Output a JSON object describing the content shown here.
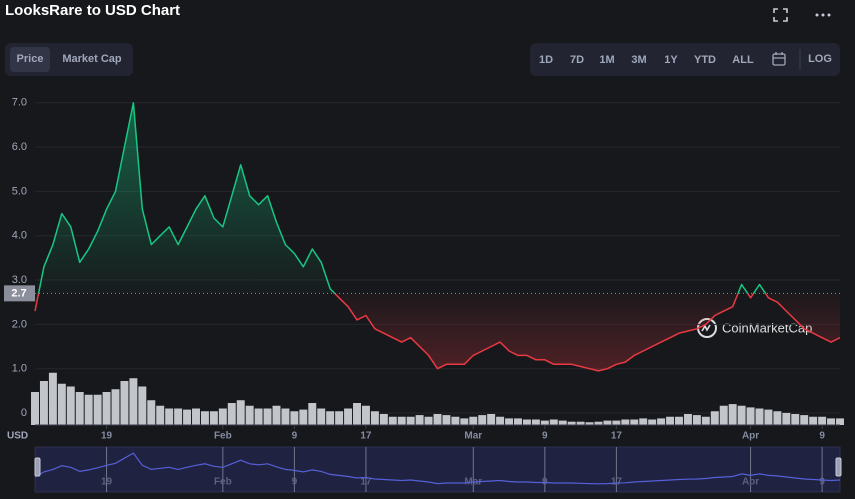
{
  "header": {
    "title": "LooksRare to USD Chart",
    "tabs": [
      "Price",
      "Market Cap"
    ],
    "ranges": [
      "1D",
      "7D",
      "1M",
      "3M",
      "1Y",
      "YTD",
      "ALL"
    ],
    "log": "LOG"
  },
  "chart_data": {
    "type": "line",
    "currency_label": "USD",
    "watermark": "CoinMarketCap",
    "x": [
      11,
      12,
      13,
      14,
      15,
      16,
      17,
      18,
      19,
      20,
      21,
      22,
      23,
      24,
      25,
      26,
      27,
      28,
      29,
      30,
      31,
      32,
      33,
      34,
      35,
      36,
      37,
      38,
      39,
      40,
      41,
      42,
      43,
      44,
      45,
      46,
      47,
      48,
      49,
      50,
      51,
      52,
      53,
      54,
      55,
      56,
      57,
      58,
      59,
      60,
      61,
      62,
      63,
      64,
      65,
      66,
      67,
      68,
      69,
      70,
      71,
      72,
      73,
      74,
      75,
      76,
      77,
      78,
      79,
      80,
      81,
      82,
      83,
      84,
      85,
      86,
      87,
      88,
      89,
      90,
      91,
      92,
      93,
      94,
      95,
      96,
      97,
      98,
      99,
      100,
      101
    ],
    "values": [
      2.3,
      3.3,
      3.8,
      4.5,
      4.2,
      3.4,
      3.7,
      4.1,
      4.6,
      5.0,
      6.0,
      7.0,
      4.6,
      3.8,
      4.0,
      4.2,
      3.8,
      4.2,
      4.6,
      4.9,
      4.4,
      4.2,
      4.9,
      5.6,
      4.9,
      4.7,
      4.9,
      4.3,
      3.8,
      3.6,
      3.3,
      3.7,
      3.4,
      2.8,
      2.6,
      2.4,
      2.1,
      2.2,
      1.9,
      1.8,
      1.7,
      1.6,
      1.7,
      1.5,
      1.3,
      1.0,
      1.1,
      1.1,
      1.1,
      1.3,
      1.4,
      1.5,
      1.6,
      1.4,
      1.3,
      1.3,
      1.2,
      1.2,
      1.1,
      1.1,
      1.1,
      1.05,
      1.0,
      0.95,
      1.0,
      1.1,
      1.15,
      1.3,
      1.4,
      1.5,
      1.6,
      1.7,
      1.8,
      1.85,
      1.9,
      2.0,
      2.2,
      2.3,
      2.4,
      2.9,
      2.6,
      2.9,
      2.6,
      2.5,
      2.3,
      2.1,
      1.9,
      1.8,
      1.7,
      1.6,
      1.7
    ],
    "volume": [
      60,
      80,
      95,
      75,
      70,
      60,
      55,
      55,
      60,
      65,
      80,
      85,
      70,
      45,
      35,
      30,
      30,
      28,
      30,
      25,
      25,
      30,
      40,
      45,
      35,
      30,
      30,
      35,
      30,
      25,
      28,
      40,
      30,
      25,
      25,
      30,
      40,
      35,
      25,
      20,
      15,
      15,
      15,
      18,
      15,
      20,
      18,
      15,
      12,
      15,
      18,
      20,
      15,
      12,
      12,
      10,
      10,
      8,
      10,
      8,
      6,
      6,
      5,
      6,
      8,
      8,
      10,
      10,
      12,
      10,
      12,
      15,
      15,
      20,
      18,
      15,
      25,
      35,
      38,
      35,
      32,
      30,
      28,
      25,
      22,
      20,
      18,
      15,
      15,
      12,
      12
    ],
    "volume_lim": [
      0,
      100
    ],
    "baseline": 2.7,
    "up_color": "#16c784",
    "down_color": "#ea3943",
    "volume_color": "#d5d8de",
    "navigator_color": "#5560d8",
    "xlim": [
      11,
      101
    ],
    "xticks": [
      19,
      {
        "value": 32,
        "label": "Feb"
      },
      {
        "value": 40,
        "label": "9"
      },
      {
        "value": 48,
        "label": "17"
      },
      {
        "value": 60,
        "label": "Mar"
      },
      {
        "value": 68,
        "label": "9"
      },
      {
        "value": 76,
        "label": "17"
      },
      {
        "value": 91,
        "label": "Apr"
      },
      {
        "value": 99,
        "label": "9"
      }
    ],
    "ylim": [
      -0.27,
      7.22
    ],
    "yticks": [
      0,
      {
        "value": 1,
        "label": "1.0"
      },
      {
        "value": 2,
        "label": "2.0"
      },
      {
        "value": 3,
        "label": "3.0"
      },
      {
        "value": 4,
        "label": "4.0"
      },
      {
        "value": 5,
        "label": "5.0"
      },
      {
        "value": 6,
        "label": "6.0"
      },
      {
        "value": 7,
        "label": "7.0"
      }
    ],
    "grid": true
  }
}
